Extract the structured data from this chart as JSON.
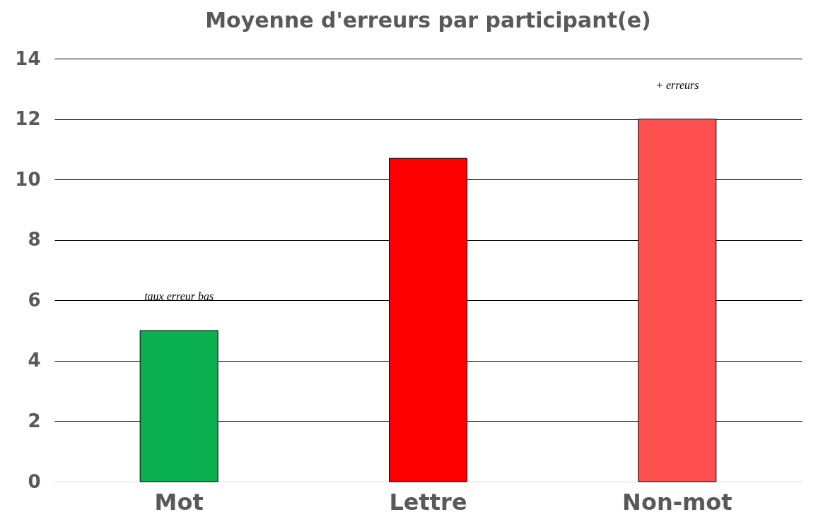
{
  "chart_data": {
    "type": "bar",
    "title": "Moyenne d'erreurs par participant(e)",
    "categories": [
      "Mot",
      "Lettre",
      "Non-mot"
    ],
    "values": [
      5,
      10.7,
      12
    ],
    "colors": [
      "#0aaf50",
      "#ff0000",
      "#ff5050"
    ],
    "ylim": [
      0,
      14
    ],
    "yticks": [
      0,
      2,
      4,
      6,
      8,
      10,
      12,
      14
    ],
    "grid": "y",
    "annotations": [
      {
        "text": "taux erreur bas",
        "x": "Mot",
        "y": 5
      },
      {
        "text": "+ erreurs",
        "x": "Non-mot",
        "y": 12
      }
    ]
  }
}
